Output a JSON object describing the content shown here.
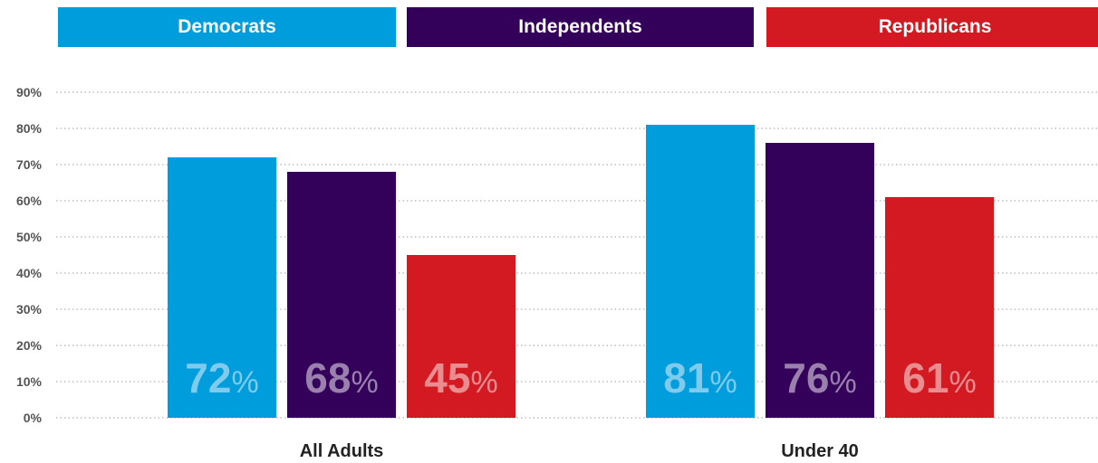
{
  "chart_data": {
    "type": "bar",
    "categories": [
      "All Adults",
      "Under 40"
    ],
    "series": [
      {
        "name": "Democrats",
        "values": [
          72,
          81
        ],
        "color": "#009ddc",
        "label_color": "#7fcbee"
      },
      {
        "name": "Independents",
        "values": [
          68,
          76
        ],
        "color": "#33005a",
        "label_color": "#9a80ad"
      },
      {
        "name": "Republicans",
        "values": [
          45,
          61
        ],
        "color": "#d31a22",
        "label_color": "#e98d91"
      }
    ],
    "value_labels": [
      [
        "72",
        "81"
      ],
      [
        "68",
        "76"
      ],
      [
        "45",
        "61"
      ]
    ],
    "value_suffix": "%",
    "yticks": [
      0,
      10,
      20,
      30,
      40,
      50,
      60,
      70,
      80,
      90
    ],
    "ytick_labels": [
      "0%",
      "10%",
      "20%",
      "30%",
      "40%",
      "50%",
      "60%",
      "70%",
      "80%",
      "90%"
    ],
    "ylim": [
      0,
      90
    ],
    "grid": true,
    "grid_style": "dotted",
    "legend_position": "top"
  }
}
